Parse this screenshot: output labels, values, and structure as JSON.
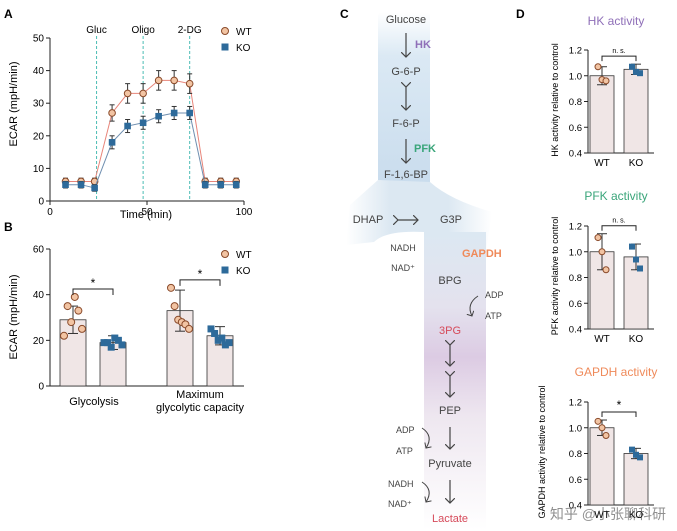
{
  "panels": {
    "A": "A",
    "B": "B",
    "C": "C",
    "D": "D"
  },
  "colors": {
    "wt": "#f2c4a3",
    "wt_stroke": "#8a4a2a",
    "wt_line": "#e8857a",
    "ko": "#2d6a9a",
    "ko_line": "#6f8fb0",
    "bar_fill": "#f0e6e6",
    "dash": "#4dbdb5",
    "hk": "#8f6fb8",
    "pfk": "#3aa57a",
    "gapdh": "#ef8a5a",
    "lactate": "#d64a5a",
    "pathway": "#d6e6f2",
    "pathway_purple": "#d8c6e0"
  },
  "chart_data": [
    {
      "id": "A",
      "type": "line",
      "xlabel": "Time (min)",
      "ylabel": "ECAR (mpH/min)",
      "xlim": [
        0,
        100
      ],
      "ylim": [
        0,
        50
      ],
      "xticks": [
        0,
        50,
        100
      ],
      "yticks": [
        0,
        10,
        20,
        30,
        40,
        50
      ],
      "x": [
        8,
        16,
        23,
        32,
        40,
        48,
        56,
        64,
        72,
        80,
        88,
        96
      ],
      "series": [
        {
          "name": "WT",
          "values": [
            6,
            6,
            6,
            27,
            33,
            33,
            37,
            37,
            36,
            6,
            6,
            6
          ],
          "err": [
            1,
            1,
            1,
            2.5,
            3,
            3,
            3,
            3,
            3,
            1,
            1,
            1
          ]
        },
        {
          "name": "KO",
          "values": [
            5,
            5,
            4,
            18,
            23,
            24,
            26,
            27,
            27,
            5,
            5,
            5
          ],
          "err": [
            1,
            1,
            1,
            2,
            2,
            2,
            2,
            2,
            2,
            1,
            1,
            1
          ]
        }
      ],
      "vlines": [
        {
          "x": 24,
          "label": "Gluc"
        },
        {
          "x": 48,
          "label": "Oligo"
        },
        {
          "x": 72,
          "label": "2-DG"
        }
      ],
      "legend": "top-right"
    },
    {
      "id": "B",
      "type": "bar",
      "ylabel": "ECAR (mpH/min)",
      "ylim": [
        0,
        60
      ],
      "yticks": [
        0,
        20,
        40,
        60
      ],
      "categories": [
        "Glycolysis",
        "Maximum glycolytic capacity"
      ],
      "category_lines": [
        [
          "Glycolysis"
        ],
        [
          "Maximum",
          "glycolytic capacity"
        ]
      ],
      "series": [
        {
          "name": "WT",
          "values": [
            29,
            33
          ],
          "err": [
            6,
            9
          ],
          "points": [
            [
              22,
              35,
              28,
              39,
              33,
              25
            ],
            [
              43,
              35,
              29,
              28,
              27,
              25
            ]
          ]
        },
        {
          "name": "KO",
          "values": [
            19,
            22
          ],
          "err": [
            3,
            4
          ],
          "points": [
            [
              19,
              19,
              17,
              21,
              20,
              18
            ],
            [
              25,
              23,
              20,
              21,
              18,
              19
            ]
          ]
        }
      ],
      "significance": [
        "*",
        "*"
      ],
      "legend": "top-right"
    },
    {
      "id": "D1",
      "type": "bar",
      "title": "HK activity",
      "ylabel": "HK activity relative to control",
      "ylim": [
        0.4,
        1.2
      ],
      "yticks": [
        0.4,
        0.6,
        0.8,
        1.0,
        1.2
      ],
      "categories": [
        "WT",
        "KO"
      ],
      "values": [
        1.0,
        1.05
      ],
      "err": [
        0.07,
        0.04
      ],
      "points": [
        [
          1.07,
          0.97,
          0.96
        ],
        [
          1.07,
          1.03,
          1.02
        ]
      ],
      "significance": "n. s."
    },
    {
      "id": "D2",
      "type": "bar",
      "title": "PFK activity",
      "ylabel": "PFK activity relative to control",
      "ylim": [
        0.4,
        1.2
      ],
      "yticks": [
        0.4,
        0.6,
        0.8,
        1.0,
        1.2
      ],
      "categories": [
        "WT",
        "KO"
      ],
      "values": [
        1.0,
        0.96
      ],
      "err": [
        0.14,
        0.1
      ],
      "points": [
        [
          1.11,
          1.0,
          0.86
        ],
        [
          1.04,
          0.94,
          0.87
        ]
      ],
      "significance": "n. s."
    },
    {
      "id": "D3",
      "type": "bar",
      "title": "GAPDH activity",
      "ylabel": "GAPDH activity relative to control",
      "ylim": [
        0.4,
        1.2
      ],
      "yticks": [
        0.4,
        0.6,
        0.8,
        1.0,
        1.2
      ],
      "categories": [
        "WT",
        "KO"
      ],
      "values": [
        1.0,
        0.8
      ],
      "err": [
        0.06,
        0.04
      ],
      "points": [
        [
          1.05,
          1.0,
          0.94
        ],
        [
          0.83,
          0.79,
          0.77
        ]
      ],
      "significance": "*"
    }
  ],
  "pathway": {
    "metabolites": {
      "glucose": "Glucose",
      "g6p": "G-6-P",
      "f6p": "F-6-P",
      "f16bp": "F-1,6-BP",
      "dhap": "DHAP",
      "g3p": "G3P",
      "bpg": "BPG",
      "pg3": "3PG",
      "pep": "PEP",
      "pyruvate": "Pyruvate",
      "lactate": "Lactate"
    },
    "enzymes": {
      "hk": "HK",
      "pfk": "PFK",
      "gapdh": "GAPDH"
    },
    "cofactors": {
      "nadh1": "NADH",
      "nad1": "NAD⁺",
      "adp1": "ADP",
      "atp1": "ATP",
      "adp2": "ADP",
      "atp2": "ATP",
      "nadh2": "NADH",
      "nad2": "NAD⁺"
    }
  },
  "watermark": "知乎 @小张聊科研"
}
